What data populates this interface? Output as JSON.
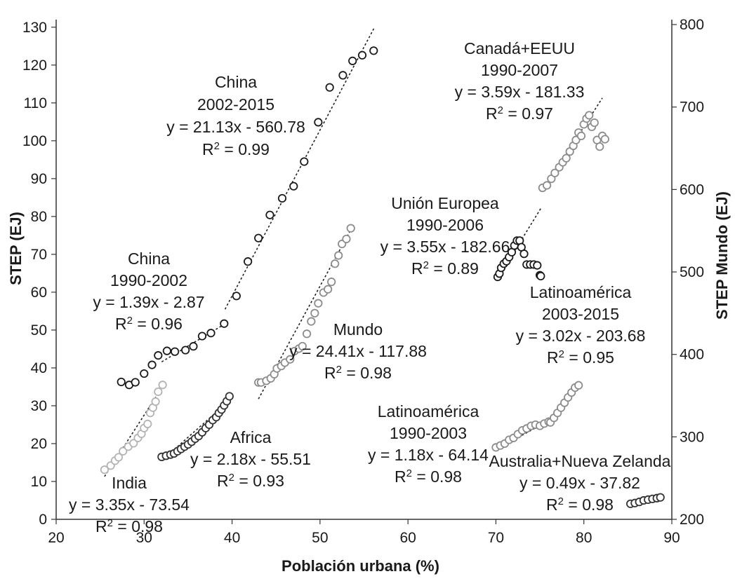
{
  "chart_data": {
    "type": "scatter",
    "xlabel": "Población urbana (%)",
    "ylabel": "STEP (EJ)",
    "y2label": "STEP Mundo (EJ)",
    "xlim": [
      20,
      90
    ],
    "ylim": [
      0,
      132
    ],
    "y2lim": [
      200,
      806
    ],
    "x_ticks": [
      20,
      30,
      40,
      50,
      60,
      70,
      80,
      90
    ],
    "y_ticks": [
      0,
      10,
      20,
      30,
      40,
      50,
      60,
      70,
      80,
      90,
      100,
      110,
      120,
      130
    ],
    "y2_ticks": [
      200,
      300,
      400,
      500,
      600,
      700,
      800
    ],
    "grid": false,
    "legend": "none",
    "series": [
      {
        "name": "China 1990-2002",
        "color": "#1a1a1a",
        "axis": "left",
        "x": [
          27.4,
          28.3,
          29.0,
          30.0,
          30.9,
          31.6,
          32.6,
          33.5,
          34.7,
          35.6,
          36.6,
          37.6,
          39.1
        ],
        "y": [
          36.3,
          35.5,
          36.2,
          38.5,
          40.8,
          43.3,
          44.5,
          44.3,
          44.7,
          45.7,
          48.4,
          49.2,
          51.7
        ],
        "fit": {
          "x": [
            32.0,
            39.1
          ],
          "y": [
            41.6,
            51.5
          ]
        }
      },
      {
        "name": "China 2002-2015",
        "color": "#1a1a1a",
        "axis": "left",
        "x": [
          40.5,
          41.8,
          43.0,
          44.3,
          45.7,
          47.0,
          48.2,
          49.8,
          51.1,
          52.6,
          53.7,
          54.8,
          56.1
        ],
        "y": [
          59.0,
          68.1,
          74.3,
          80.4,
          84.8,
          88.0,
          94.5,
          104.9,
          114.1,
          117.3,
          121.1,
          122.6,
          123.8
        ],
        "fit": {
          "x": [
            39.2,
            56.2
          ],
          "y": [
            55.5,
            130.0
          ]
        }
      },
      {
        "name": "Mundo",
        "color": "#8c8c8c",
        "axis": "right",
        "x": [
          43.0,
          43.3,
          43.9,
          44.4,
          44.8,
          45.1,
          45.6,
          46.0,
          46.6,
          47.1,
          47.6,
          48.0,
          48.5,
          49.0,
          49.4,
          49.8,
          50.4,
          50.9,
          51.3,
          51.7,
          52.1,
          52.5,
          53.0,
          53.5
        ],
        "y": [
          366,
          366,
          368,
          371,
          376,
          383,
          386,
          390,
          394,
          404,
          407,
          410,
          425,
          440,
          450,
          462,
          475,
          479,
          488,
          510,
          520,
          534,
          540,
          553
        ],
        "fit": {
          "x": [
            43.0,
            53.8
          ],
          "y": [
            346,
            557
          ]
        }
      },
      {
        "name": "India",
        "color": "#b3b3b3",
        "axis": "left",
        "x": [
          25.5,
          26.2,
          26.7,
          27.1,
          27.6,
          28.2,
          28.8,
          29.3,
          29.7,
          30.0,
          30.4,
          30.7,
          31.0,
          31.3,
          31.6,
          32.1
        ],
        "y": [
          13.1,
          14.2,
          15.5,
          16.4,
          18.0,
          19.2,
          20.1,
          21.5,
          22.6,
          24.1,
          25.2,
          28.1,
          29.5,
          31.1,
          33.7,
          35.5
        ],
        "fit": {
          "x": [
            25.5,
            32.3
          ],
          "y": [
            11.3,
            35.8
          ]
        }
      },
      {
        "name": "Africa",
        "color": "#333333",
        "axis": "left",
        "x": [
          32.0,
          32.5,
          33.0,
          33.4,
          33.8,
          34.2,
          34.6,
          35.0,
          35.4,
          35.8,
          36.2,
          36.6,
          37.0,
          37.4,
          37.8,
          38.2,
          38.5,
          38.8,
          39.1,
          39.4,
          39.7
        ],
        "y": [
          16.5,
          16.8,
          17.1,
          17.4,
          18.0,
          18.6,
          19.2,
          19.8,
          20.5,
          21.3,
          22.0,
          23.0,
          24.1,
          25.0,
          26.2,
          27.0,
          28.1,
          29.0,
          30.1,
          31.2,
          32.5
        ],
        "fit": {
          "x": [
            32.0,
            40.0
          ],
          "y": [
            15.5,
            32.0
          ]
        }
      },
      {
        "name": "Unión Europea 1990-2006",
        "color": "#1a1a1a",
        "axis": "right",
        "x": [
          70.2,
          70.4,
          70.6,
          70.9,
          71.2,
          71.5,
          71.8,
          72.1,
          72.4,
          72.7,
          72.9,
          73.2,
          73.5,
          73.9,
          74.3,
          74.7,
          75.0,
          75.1
        ],
        "y": [
          494,
          498,
          505,
          510,
          513,
          518,
          524,
          532,
          538,
          538,
          530,
          522,
          509,
          509,
          509,
          508,
          496,
          495
        ],
        "fit": {
          "x": [
            70.2,
            75.1
          ],
          "y": [
            492,
            577
          ]
        }
      },
      {
        "name": "Canadá+EEUU 1990-2007",
        "color": "#8c8c8c",
        "axis": "right",
        "x": [
          75.3,
          75.8,
          76.3,
          76.7,
          77.2,
          77.6,
          78.0,
          78.4,
          78.8,
          79.1,
          79.4,
          79.7,
          80.0,
          80.3,
          80.6,
          80.9,
          81.2,
          81.5,
          81.8,
          82.1,
          82.4
        ],
        "y": [
          602,
          605,
          613,
          620,
          627,
          633,
          638,
          646,
          653,
          660,
          669,
          665,
          679,
          686,
          690,
          676,
          681,
          660,
          652,
          665,
          661
        ],
        "fit": {
          "x": [
            75.3,
            82.1
          ],
          "y": [
            598,
            711
          ]
        }
      },
      {
        "name": "Latinoamérica 1990-2003",
        "color": "#8c8c8c",
        "axis": "left",
        "x": [
          70.0,
          70.5,
          71.0,
          71.5,
          72.0,
          72.5,
          73.0,
          73.5,
          74.0,
          74.5,
          75.0,
          75.5,
          76.0
        ],
        "y": [
          19.0,
          19.5,
          20.0,
          21.0,
          21.5,
          22.5,
          23.5,
          24.0,
          24.7,
          25.0,
          24.7,
          25.3,
          25.8
        ],
        "fit": {
          "x": [
            70.0,
            76.0
          ],
          "y": [
            18.5,
            26.0
          ]
        }
      },
      {
        "name": "Latinoamérica 2003-2015",
        "color": "#8c8c8c",
        "axis": "left",
        "x": [
          76.2,
          76.6,
          77.0,
          77.4,
          77.8,
          78.2,
          78.6,
          79.0,
          79.4
        ],
        "y": [
          25.6,
          26.8,
          28.1,
          29.5,
          30.8,
          32.2,
          33.5,
          34.8,
          35.4
        ],
        "fit": {
          "x": [
            76.0,
            79.4
          ],
          "y": [
            25.5,
            36.0
          ]
        }
      },
      {
        "name": "Australia+Nueva Zelanda",
        "color": "#333333",
        "axis": "left",
        "x": [
          85.3,
          85.8,
          86.3,
          86.8,
          87.3,
          87.8,
          88.3,
          88.7
        ],
        "y": [
          4.1,
          4.3,
          4.6,
          5.0,
          5.2,
          5.4,
          5.6,
          5.8
        ],
        "fit": {
          "x": [
            85.0,
            88.8
          ],
          "y": [
            3.9,
            5.9
          ]
        }
      }
    ],
    "annotations": [
      {
        "lines": [
          "China",
          "2002-2015",
          "y = 21.13x - 560.78",
          "R2 = 0.99"
        ]
      },
      {
        "lines": [
          "China",
          "1990-2002",
          "y = 1.39x - 2.87",
          "R2 = 0.96"
        ]
      },
      {
        "lines": [
          "Mundo",
          "y = 24.41x - 117.88",
          "R2 = 0.98"
        ]
      },
      {
        "lines": [
          "Africa",
          "y = 2.18x - 55.51",
          "R2 = 0.93"
        ]
      },
      {
        "lines": [
          "India",
          "y = 3.35x - 73.54",
          "R2 = 0.98"
        ]
      },
      {
        "lines": [
          "Canadá+EEUU",
          "1990-2007",
          "y = 3.59x - 181.33",
          "R2 = 0.97"
        ]
      },
      {
        "lines": [
          "Unión Europea",
          "1990-2006",
          "y = 3.55x - 182.66",
          "R2 = 0.89"
        ]
      },
      {
        "lines": [
          "Latinoamérica",
          "2003-2015",
          "y = 3.02x - 203.68",
          "R2 = 0.95"
        ]
      },
      {
        "lines": [
          "Latinoamérica",
          "1990-2003",
          "y = 1.18x - 64.14",
          "R2 = 0.98"
        ]
      },
      {
        "lines": [
          "Australia+Nueva Zelanda",
          "y = 0.49x - 37.82",
          "R2 = 0.98"
        ]
      }
    ]
  }
}
